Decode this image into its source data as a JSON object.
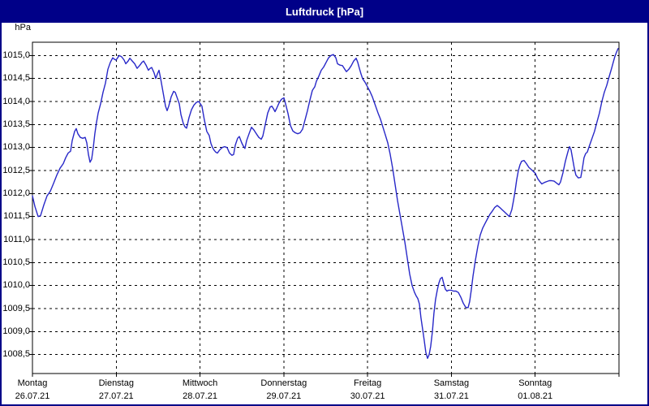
{
  "window": {
    "title": "Luftdruck [hPa]"
  },
  "colors": {
    "titlebar": "#000088",
    "window_border": "#000088",
    "line": "#2828C8",
    "grid": "#000000",
    "background": "#FFFFFF",
    "title_text": "#FFFFFF"
  },
  "chart_data": {
    "type": "line",
    "title": "Luftdruck [hPa]",
    "ylabel": "hPa",
    "y_unit_label": "hPa",
    "grid": "dashed",
    "legend": "none",
    "y_ticks": [
      "1015,0",
      "1014,5",
      "1014,0",
      "1013,5",
      "1013,0",
      "1012,5",
      "1012,0",
      "1011,5",
      "1011,0",
      "1010,5",
      "1010,0",
      "1009,5",
      "1009,0",
      "1008,5"
    ],
    "y_tick_top_value": 1015.0,
    "y_step": 0.5,
    "ylim": [
      1008.1,
      1015.3
    ],
    "x_range_days": [
      0,
      7
    ],
    "days": [
      {
        "name": "Montag",
        "date": "26.07.21"
      },
      {
        "name": "Dienstag",
        "date": "27.07.21"
      },
      {
        "name": "Mittwoch",
        "date": "28.07.21"
      },
      {
        "name": "Donnerstag",
        "date": "29.07.21"
      },
      {
        "name": "Freitag",
        "date": "30.07.21"
      },
      {
        "name": "Samstag",
        "date": "31.07.21"
      },
      {
        "name": "Sonntag",
        "date": "01.08.21"
      }
    ],
    "series": [
      {
        "name": "Luftdruck",
        "unit": "hPa",
        "points": [
          [
            0.0,
            1011.95
          ],
          [
            0.029,
            1011.72
          ],
          [
            0.068,
            1011.5
          ],
          [
            0.097,
            1011.52
          ],
          [
            0.136,
            1011.75
          ],
          [
            0.174,
            1011.95
          ],
          [
            0.213,
            1012.05
          ],
          [
            0.252,
            1012.22
          ],
          [
            0.29,
            1012.4
          ],
          [
            0.329,
            1012.55
          ],
          [
            0.368,
            1012.65
          ],
          [
            0.397,
            1012.78
          ],
          [
            0.426,
            1012.88
          ],
          [
            0.455,
            1012.92
          ],
          [
            0.474,
            1013.15
          ],
          [
            0.503,
            1013.35
          ],
          [
            0.523,
            1013.41
          ],
          [
            0.542,
            1013.3
          ],
          [
            0.571,
            1013.22
          ],
          [
            0.6,
            1013.2
          ],
          [
            0.629,
            1013.22
          ],
          [
            0.649,
            1013.1
          ],
          [
            0.668,
            1012.85
          ],
          [
            0.687,
            1012.68
          ],
          [
            0.707,
            1012.75
          ],
          [
            0.726,
            1013.0
          ],
          [
            0.745,
            1013.3
          ],
          [
            0.765,
            1013.55
          ],
          [
            0.784,
            1013.75
          ],
          [
            0.813,
            1013.95
          ],
          [
            0.842,
            1014.2
          ],
          [
            0.871,
            1014.4
          ],
          [
            0.9,
            1014.7
          ],
          [
            0.929,
            1014.85
          ],
          [
            0.958,
            1014.95
          ],
          [
            0.978,
            1014.92
          ],
          [
            0.997,
            1014.9
          ],
          [
            1.017,
            1014.95
          ],
          [
            1.036,
            1015.0
          ],
          [
            1.065,
            1014.97
          ],
          [
            1.094,
            1014.9
          ],
          [
            1.113,
            1014.82
          ],
          [
            1.142,
            1014.88
          ],
          [
            1.162,
            1014.94
          ],
          [
            1.191,
            1014.88
          ],
          [
            1.22,
            1014.82
          ],
          [
            1.249,
            1014.72
          ],
          [
            1.278,
            1014.78
          ],
          [
            1.307,
            1014.85
          ],
          [
            1.326,
            1014.88
          ],
          [
            1.355,
            1014.79
          ],
          [
            1.384,
            1014.68
          ],
          [
            1.404,
            1014.72
          ],
          [
            1.423,
            1014.74
          ],
          [
            1.452,
            1014.62
          ],
          [
            1.472,
            1014.5
          ],
          [
            1.491,
            1014.6
          ],
          [
            1.51,
            1014.68
          ],
          [
            1.53,
            1014.5
          ],
          [
            1.549,
            1014.3
          ],
          [
            1.568,
            1014.1
          ],
          [
            1.588,
            1013.9
          ],
          [
            1.607,
            1013.8
          ],
          [
            1.627,
            1013.9
          ],
          [
            1.656,
            1014.1
          ],
          [
            1.685,
            1014.22
          ],
          [
            1.704,
            1014.2
          ],
          [
            1.723,
            1014.1
          ],
          [
            1.752,
            1013.95
          ],
          [
            1.772,
            1013.72
          ],
          [
            1.801,
            1013.52
          ],
          [
            1.82,
            1013.45
          ],
          [
            1.84,
            1013.42
          ],
          [
            1.869,
            1013.65
          ],
          [
            1.898,
            1013.82
          ],
          [
            1.927,
            1013.92
          ],
          [
            1.956,
            1013.98
          ],
          [
            1.985,
            1014.0
          ],
          [
            2.023,
            1013.9
          ],
          [
            2.052,
            1013.6
          ],
          [
            2.081,
            1013.35
          ],
          [
            2.11,
            1013.26
          ],
          [
            2.13,
            1013.09
          ],
          [
            2.149,
            1013.0
          ],
          [
            2.169,
            1012.94
          ],
          [
            2.188,
            1012.9
          ],
          [
            2.207,
            1012.88
          ],
          [
            2.236,
            1012.95
          ],
          [
            2.265,
            1013.0
          ],
          [
            2.294,
            1013.02
          ],
          [
            2.323,
            1013.0
          ],
          [
            2.352,
            1012.88
          ],
          [
            2.381,
            1012.83
          ],
          [
            2.401,
            1012.85
          ],
          [
            2.42,
            1013.05
          ],
          [
            2.449,
            1013.2
          ],
          [
            2.469,
            1013.24
          ],
          [
            2.498,
            1013.1
          ],
          [
            2.517,
            1013.03
          ],
          [
            2.536,
            1012.98
          ],
          [
            2.556,
            1013.15
          ],
          [
            2.585,
            1013.3
          ],
          [
            2.614,
            1013.44
          ],
          [
            2.643,
            1013.38
          ],
          [
            2.672,
            1013.3
          ],
          [
            2.701,
            1013.22
          ],
          [
            2.73,
            1013.18
          ],
          [
            2.75,
            1013.25
          ],
          [
            2.779,
            1013.5
          ],
          [
            2.808,
            1013.75
          ],
          [
            2.837,
            1013.88
          ],
          [
            2.856,
            1013.9
          ],
          [
            2.875,
            1013.85
          ],
          [
            2.895,
            1013.78
          ],
          [
            2.914,
            1013.85
          ],
          [
            2.943,
            1013.97
          ],
          [
            2.972,
            1014.05
          ],
          [
            3.001,
            1014.08
          ],
          [
            3.021,
            1013.95
          ],
          [
            3.05,
            1013.74
          ],
          [
            3.079,
            1013.48
          ],
          [
            3.108,
            1013.36
          ],
          [
            3.137,
            1013.32
          ],
          [
            3.166,
            1013.3
          ],
          [
            3.195,
            1013.32
          ],
          [
            3.224,
            1013.4
          ],
          [
            3.253,
            1013.6
          ],
          [
            3.282,
            1013.8
          ],
          [
            3.311,
            1014.03
          ],
          [
            3.34,
            1014.24
          ],
          [
            3.369,
            1014.32
          ],
          [
            3.389,
            1014.44
          ],
          [
            3.418,
            1014.55
          ],
          [
            3.447,
            1014.68
          ],
          [
            3.476,
            1014.75
          ],
          [
            3.505,
            1014.85
          ],
          [
            3.534,
            1014.95
          ],
          [
            3.563,
            1015.0
          ],
          [
            3.592,
            1015.02
          ],
          [
            3.621,
            1014.95
          ],
          [
            3.64,
            1014.82
          ],
          [
            3.67,
            1014.79
          ],
          [
            3.699,
            1014.78
          ],
          [
            3.728,
            1014.7
          ],
          [
            3.747,
            1014.65
          ],
          [
            3.776,
            1014.7
          ],
          [
            3.805,
            1014.78
          ],
          [
            3.834,
            1014.88
          ],
          [
            3.863,
            1014.94
          ],
          [
            3.882,
            1014.85
          ],
          [
            3.902,
            1014.72
          ],
          [
            3.921,
            1014.6
          ],
          [
            3.94,
            1014.5
          ],
          [
            3.969,
            1014.42
          ],
          [
            3.999,
            1014.32
          ],
          [
            4.028,
            1014.22
          ],
          [
            4.057,
            1014.1
          ],
          [
            4.076,
            1014.0
          ],
          [
            4.095,
            1013.9
          ],
          [
            4.124,
            1013.75
          ],
          [
            4.153,
            1013.62
          ],
          [
            4.182,
            1013.45
          ],
          [
            4.211,
            1013.28
          ],
          [
            4.241,
            1013.1
          ],
          [
            4.27,
            1012.85
          ],
          [
            4.299,
            1012.55
          ],
          [
            4.328,
            1012.2
          ],
          [
            4.357,
            1011.85
          ],
          [
            4.386,
            1011.55
          ],
          [
            4.415,
            1011.25
          ],
          [
            4.444,
            1010.95
          ],
          [
            4.473,
            1010.6
          ],
          [
            4.502,
            1010.25
          ],
          [
            4.531,
            1010.0
          ],
          [
            4.56,
            1009.85
          ],
          [
            4.579,
            1009.78
          ],
          [
            4.599,
            1009.72
          ],
          [
            4.618,
            1009.6
          ],
          [
            4.637,
            1009.3
          ],
          [
            4.657,
            1009.05
          ],
          [
            4.676,
            1008.8
          ],
          [
            4.695,
            1008.55
          ],
          [
            4.715,
            1008.42
          ],
          [
            4.734,
            1008.5
          ],
          [
            4.753,
            1008.68
          ],
          [
            4.773,
            1009.0
          ],
          [
            4.792,
            1009.4
          ],
          [
            4.811,
            1009.7
          ],
          [
            4.831,
            1009.9
          ],
          [
            4.85,
            1010.05
          ],
          [
            4.869,
            1010.15
          ],
          [
            4.889,
            1010.18
          ],
          [
            4.908,
            1010.05
          ],
          [
            4.928,
            1009.92
          ],
          [
            4.947,
            1009.88
          ],
          [
            4.966,
            1009.9
          ],
          [
            4.996,
            1009.9
          ],
          [
            5.025,
            1009.88
          ],
          [
            5.054,
            1009.88
          ],
          [
            5.083,
            1009.85
          ],
          [
            5.112,
            1009.75
          ],
          [
            5.141,
            1009.62
          ],
          [
            5.17,
            1009.53
          ],
          [
            5.199,
            1009.52
          ],
          [
            5.218,
            1009.65
          ],
          [
            5.237,
            1009.9
          ],
          [
            5.257,
            1010.2
          ],
          [
            5.286,
            1010.55
          ],
          [
            5.315,
            1010.85
          ],
          [
            5.344,
            1011.1
          ],
          [
            5.373,
            1011.25
          ],
          [
            5.402,
            1011.35
          ],
          [
            5.431,
            1011.45
          ],
          [
            5.46,
            1011.55
          ],
          [
            5.489,
            1011.62
          ],
          [
            5.518,
            1011.7
          ],
          [
            5.547,
            1011.74
          ],
          [
            5.576,
            1011.7
          ],
          [
            5.605,
            1011.65
          ],
          [
            5.634,
            1011.6
          ],
          [
            5.663,
            1011.55
          ],
          [
            5.692,
            1011.5
          ],
          [
            5.721,
            1011.65
          ],
          [
            5.741,
            1011.85
          ],
          [
            5.76,
            1012.05
          ],
          [
            5.779,
            1012.3
          ],
          [
            5.799,
            1012.5
          ],
          [
            5.818,
            1012.62
          ],
          [
            5.837,
            1012.7
          ],
          [
            5.866,
            1012.72
          ],
          [
            5.895,
            1012.65
          ],
          [
            5.924,
            1012.57
          ],
          [
            5.954,
            1012.52
          ],
          [
            5.983,
            1012.47
          ],
          [
            6.002,
            1012.44
          ],
          [
            6.031,
            1012.32
          ],
          [
            6.06,
            1012.25
          ],
          [
            6.079,
            1012.21
          ],
          [
            6.108,
            1012.24
          ],
          [
            6.137,
            1012.26
          ],
          [
            6.167,
            1012.28
          ],
          [
            6.196,
            1012.28
          ],
          [
            6.225,
            1012.27
          ],
          [
            6.254,
            1012.23
          ],
          [
            6.283,
            1012.19
          ],
          [
            6.302,
            1012.25
          ],
          [
            6.331,
            1012.45
          ],
          [
            6.36,
            1012.7
          ],
          [
            6.389,
            1012.9
          ],
          [
            6.409,
            1013.02
          ],
          [
            6.428,
            1012.95
          ],
          [
            6.447,
            1012.75
          ],
          [
            6.467,
            1012.55
          ],
          [
            6.486,
            1012.4
          ],
          [
            6.515,
            1012.34
          ],
          [
            6.544,
            1012.35
          ],
          [
            6.563,
            1012.55
          ],
          [
            6.583,
            1012.78
          ],
          [
            6.602,
            1012.87
          ],
          [
            6.621,
            1012.9
          ],
          [
            6.65,
            1013.05
          ],
          [
            6.679,
            1013.2
          ],
          [
            6.708,
            1013.35
          ],
          [
            6.737,
            1013.55
          ],
          [
            6.767,
            1013.75
          ],
          [
            6.796,
            1014.0
          ],
          [
            6.825,
            1014.2
          ],
          [
            6.854,
            1014.35
          ],
          [
            6.873,
            1014.48
          ],
          [
            6.893,
            1014.6
          ],
          [
            6.912,
            1014.72
          ],
          [
            6.931,
            1014.85
          ],
          [
            6.95,
            1014.97
          ],
          [
            6.97,
            1015.07
          ],
          [
            6.989,
            1015.15
          ]
        ]
      }
    ]
  }
}
